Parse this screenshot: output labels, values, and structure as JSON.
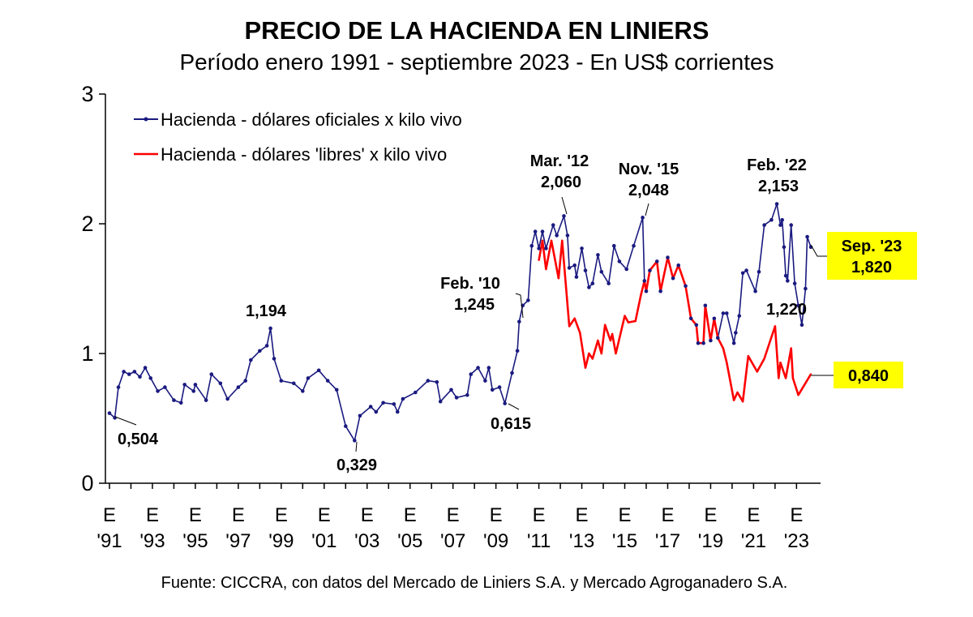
{
  "chart_data": {
    "type": "line",
    "title": "PRECIO DE LA HACIENDA EN LINIERS",
    "subtitle": "Período enero 1991 - septiembre 2023 - En US$ corrientes",
    "source": "Fuente: CICCRA, con datos del Mercado de Liniers S.A. y Mercado Agroganadero S.A.",
    "xlabel": "",
    "ylabel": "",
    "ylim": [
      0,
      3
    ],
    "xlim": [
      "1991-01",
      "2023-09"
    ],
    "grid": false,
    "legend_position": "top-left",
    "y_ticks": [
      "0",
      "1",
      "2",
      "3"
    ],
    "x_ticks": [
      {
        "date": "1991-01",
        "top": "E",
        "bottom": "'91"
      },
      {
        "date": "1993-01",
        "top": "E",
        "bottom": "'93"
      },
      {
        "date": "1995-01",
        "top": "E",
        "bottom": "'95"
      },
      {
        "date": "1997-01",
        "top": "E",
        "bottom": "'97"
      },
      {
        "date": "1999-01",
        "top": "E",
        "bottom": "'99"
      },
      {
        "date": "2001-01",
        "top": "E",
        "bottom": "'01"
      },
      {
        "date": "2003-01",
        "top": "E",
        "bottom": "'03"
      },
      {
        "date": "2005-01",
        "top": "E",
        "bottom": "'05"
      },
      {
        "date": "2007-01",
        "top": "E",
        "bottom": "'07"
      },
      {
        "date": "2009-01",
        "top": "E",
        "bottom": "'09"
      },
      {
        "date": "2011-01",
        "top": "E",
        "bottom": "'11"
      },
      {
        "date": "2013-01",
        "top": "E",
        "bottom": "'13"
      },
      {
        "date": "2015-01",
        "top": "E",
        "bottom": "'15"
      },
      {
        "date": "2017-01",
        "top": "E",
        "bottom": "'17"
      },
      {
        "date": "2019-01",
        "top": "E",
        "bottom": "'19"
      },
      {
        "date": "2021-01",
        "top": "E",
        "bottom": "'21"
      },
      {
        "date": "2023-01",
        "top": "E",
        "bottom": "'23"
      }
    ],
    "series": [
      {
        "name": "Hacienda - dólares oficiales x kilo vivo",
        "color": "#1a1a80",
        "marker": "dot",
        "points": [
          [
            "1991-01",
            0.54
          ],
          [
            "1991-04",
            0.504
          ],
          [
            "1991-06",
            0.74
          ],
          [
            "1991-09",
            0.86
          ],
          [
            "1991-12",
            0.84
          ],
          [
            "1992-03",
            0.86
          ],
          [
            "1992-06",
            0.82
          ],
          [
            "1992-09",
            0.89
          ],
          [
            "1992-12",
            0.81
          ],
          [
            "1993-04",
            0.71
          ],
          [
            "1993-08",
            0.74
          ],
          [
            "1994-01",
            0.64
          ],
          [
            "1994-05",
            0.62
          ],
          [
            "1994-07",
            0.76
          ],
          [
            "1994-12",
            0.71
          ],
          [
            "1995-01",
            0.76
          ],
          [
            "1995-07",
            0.64
          ],
          [
            "1995-10",
            0.84
          ],
          [
            "1996-03",
            0.77
          ],
          [
            "1996-07",
            0.65
          ],
          [
            "1997-01",
            0.74
          ],
          [
            "1997-05",
            0.79
          ],
          [
            "1997-08",
            0.95
          ],
          [
            "1998-01",
            1.02
          ],
          [
            "1998-05",
            1.06
          ],
          [
            "1998-07",
            1.194
          ],
          [
            "1998-09",
            0.96
          ],
          [
            "1999-01",
            0.79
          ],
          [
            "1999-08",
            0.77
          ],
          [
            "2000-01",
            0.71
          ],
          [
            "2000-04",
            0.81
          ],
          [
            "2000-10",
            0.87
          ],
          [
            "2001-03",
            0.79
          ],
          [
            "2001-08",
            0.72
          ],
          [
            "2002-01",
            0.44
          ],
          [
            "2002-06",
            0.329
          ],
          [
            "2002-09",
            0.52
          ],
          [
            "2003-03",
            0.59
          ],
          [
            "2003-06",
            0.55
          ],
          [
            "2003-10",
            0.62
          ],
          [
            "2004-04",
            0.61
          ],
          [
            "2004-06",
            0.55
          ],
          [
            "2004-09",
            0.65
          ],
          [
            "2005-04",
            0.7
          ],
          [
            "2005-11",
            0.79
          ],
          [
            "2006-04",
            0.78
          ],
          [
            "2006-06",
            0.63
          ],
          [
            "2006-12",
            0.72
          ],
          [
            "2007-03",
            0.66
          ],
          [
            "2007-09",
            0.68
          ],
          [
            "2007-11",
            0.84
          ],
          [
            "2008-03",
            0.89
          ],
          [
            "2008-07",
            0.79
          ],
          [
            "2008-09",
            0.89
          ],
          [
            "2008-11",
            0.72
          ],
          [
            "2009-03",
            0.74
          ],
          [
            "2009-06",
            0.615
          ],
          [
            "2009-10",
            0.85
          ],
          [
            "2010-01",
            1.02
          ],
          [
            "2010-02",
            1.245
          ],
          [
            "2010-04",
            1.37
          ],
          [
            "2010-07",
            1.41
          ],
          [
            "2010-09",
            1.83
          ],
          [
            "2010-11",
            1.94
          ],
          [
            "2011-01",
            1.81
          ],
          [
            "2011-03",
            1.94
          ],
          [
            "2011-05",
            1.81
          ],
          [
            "2011-09",
            1.99
          ],
          [
            "2011-11",
            1.91
          ],
          [
            "2012-03",
            2.06
          ],
          [
            "2012-05",
            1.91
          ],
          [
            "2012-06",
            1.66
          ],
          [
            "2012-09",
            1.68
          ],
          [
            "2012-10",
            1.59
          ],
          [
            "2013-01",
            1.81
          ],
          [
            "2013-03",
            1.64
          ],
          [
            "2013-05",
            1.51
          ],
          [
            "2013-07",
            1.54
          ],
          [
            "2013-10",
            1.76
          ],
          [
            "2013-12",
            1.63
          ],
          [
            "2014-04",
            1.54
          ],
          [
            "2014-07",
            1.83
          ],
          [
            "2014-10",
            1.71
          ],
          [
            "2015-02",
            1.65
          ],
          [
            "2015-06",
            1.83
          ],
          [
            "2015-11",
            2.048
          ],
          [
            "2015-12",
            1.56
          ],
          [
            "2016-01",
            1.48
          ],
          [
            "2016-03",
            1.64
          ],
          [
            "2016-07",
            1.71
          ],
          [
            "2016-09",
            1.48
          ],
          [
            "2017-01",
            1.74
          ],
          [
            "2017-04",
            1.58
          ],
          [
            "2017-07",
            1.68
          ],
          [
            "2017-11",
            1.52
          ],
          [
            "2018-02",
            1.27
          ],
          [
            "2018-05",
            1.22
          ],
          [
            "2018-06",
            1.08
          ],
          [
            "2018-09",
            1.08
          ],
          [
            "2018-10",
            1.37
          ],
          [
            "2019-01",
            1.1
          ],
          [
            "2019-03",
            1.27
          ],
          [
            "2019-05",
            1.12
          ],
          [
            "2019-08",
            1.31
          ],
          [
            "2019-10",
            1.31
          ],
          [
            "2020-02",
            1.08
          ],
          [
            "2020-03",
            1.16
          ],
          [
            "2020-05",
            1.29
          ],
          [
            "2020-07",
            1.62
          ],
          [
            "2020-09",
            1.64
          ],
          [
            "2021-02",
            1.48
          ],
          [
            "2021-04",
            1.63
          ],
          [
            "2021-07",
            1.99
          ],
          [
            "2021-11",
            2.03
          ],
          [
            "2022-02",
            2.153
          ],
          [
            "2022-04",
            1.99
          ],
          [
            "2022-05",
            2.03
          ],
          [
            "2022-06",
            1.82
          ],
          [
            "2022-07",
            1.6
          ],
          [
            "2022-08",
            1.56
          ],
          [
            "2022-10",
            1.99
          ],
          [
            "2022-12",
            1.54
          ],
          [
            "2023-02",
            1.37
          ],
          [
            "2023-04",
            1.22
          ],
          [
            "2023-06",
            1.5
          ],
          [
            "2023-07",
            1.9
          ],
          [
            "2023-09",
            1.82
          ]
        ]
      },
      {
        "name": "Hacienda - dólares 'libres' x kilo vivo",
        "color": "#ff0000",
        "marker": "none",
        "points": [
          [
            "2011-01",
            1.72
          ],
          [
            "2011-03",
            1.87
          ],
          [
            "2011-05",
            1.65
          ],
          [
            "2011-08",
            1.87
          ],
          [
            "2011-12",
            1.58
          ],
          [
            "2012-02",
            1.87
          ],
          [
            "2012-06",
            1.21
          ],
          [
            "2012-09",
            1.27
          ],
          [
            "2012-12",
            1.16
          ],
          [
            "2013-03",
            0.89
          ],
          [
            "2013-05",
            1.0
          ],
          [
            "2013-07",
            0.96
          ],
          [
            "2013-10",
            1.1
          ],
          [
            "2013-12",
            1.0
          ],
          [
            "2014-02",
            1.22
          ],
          [
            "2014-05",
            1.1
          ],
          [
            "2014-06",
            1.15
          ],
          [
            "2014-08",
            1.0
          ],
          [
            "2015-01",
            1.29
          ],
          [
            "2015-03",
            1.24
          ],
          [
            "2015-07",
            1.25
          ],
          [
            "2015-10",
            1.45
          ],
          [
            "2015-12",
            1.56
          ],
          [
            "2016-01",
            1.48
          ],
          [
            "2016-03",
            1.64
          ],
          [
            "2016-07",
            1.71
          ],
          [
            "2016-09",
            1.48
          ],
          [
            "2017-01",
            1.74
          ],
          [
            "2017-04",
            1.58
          ],
          [
            "2017-07",
            1.68
          ],
          [
            "2017-11",
            1.52
          ],
          [
            "2018-02",
            1.27
          ],
          [
            "2018-05",
            1.22
          ],
          [
            "2018-06",
            1.08
          ],
          [
            "2018-09",
            1.08
          ],
          [
            "2018-10",
            1.37
          ],
          [
            "2019-01",
            1.1
          ],
          [
            "2019-03",
            1.27
          ],
          [
            "2019-05",
            1.12
          ],
          [
            "2019-08",
            1.04
          ],
          [
            "2019-10",
            0.93
          ],
          [
            "2020-02",
            0.64
          ],
          [
            "2020-04",
            0.7
          ],
          [
            "2020-07",
            0.63
          ],
          [
            "2020-10",
            0.98
          ],
          [
            "2021-03",
            0.86
          ],
          [
            "2021-07",
            0.96
          ],
          [
            "2022-01",
            1.21
          ],
          [
            "2022-03",
            0.81
          ],
          [
            "2022-04",
            0.93
          ],
          [
            "2022-07",
            0.81
          ],
          [
            "2022-10",
            1.04
          ],
          [
            "2022-11",
            0.81
          ],
          [
            "2023-02",
            0.68
          ],
          [
            "2023-09",
            0.84
          ]
        ]
      }
    ],
    "annotations": [
      {
        "id": "min-1991",
        "lines": [
          "0,504"
        ],
        "highlight": false
      },
      {
        "id": "peak-1998",
        "lines": [
          "1,194"
        ],
        "highlight": false
      },
      {
        "id": "min-2002",
        "lines": [
          "0,329"
        ],
        "highlight": false
      },
      {
        "id": "feb-2010",
        "lines": [
          "Feb. '10",
          "1,245"
        ],
        "highlight": false
      },
      {
        "id": "min-2009",
        "lines": [
          "0,615"
        ],
        "highlight": false
      },
      {
        "id": "mar-2012",
        "lines": [
          "Mar. '12",
          "2,060"
        ],
        "highlight": false
      },
      {
        "id": "nov-2015",
        "lines": [
          "Nov. '15",
          "2,048"
        ],
        "highlight": false
      },
      {
        "id": "feb-2022",
        "lines": [
          "Feb. '22",
          "2,153"
        ],
        "highlight": false
      },
      {
        "id": "min-2023",
        "lines": [
          "1,220"
        ],
        "highlight": false
      },
      {
        "id": "sep-2023-oficial",
        "lines": [
          "Sep. '23",
          "1,820"
        ],
        "highlight": true,
        "highlight_color": "#ffff00"
      },
      {
        "id": "sep-2023-libre",
        "lines": [
          "0,840"
        ],
        "highlight": true,
        "highlight_color": "#ffff00"
      }
    ]
  }
}
